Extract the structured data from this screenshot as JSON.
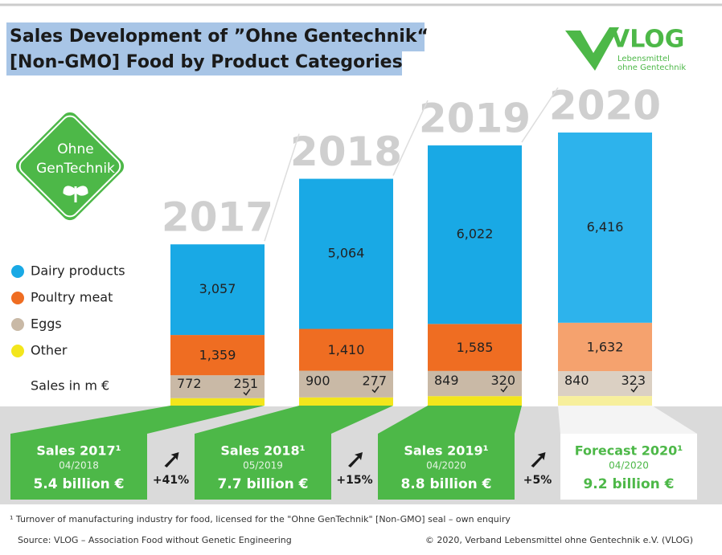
{
  "chart_data": {
    "type": "stacked_bar",
    "title_lines": [
      "Sales Development of ”Ohne Gentechnik“",
      "[Non-GMO] Food by Product Categories"
    ],
    "logo": {
      "name": "VLOG",
      "tagline": [
        "Lebensmittel",
        "ohne Gentechnik"
      ]
    },
    "badge": [
      "Ohne",
      "GenTechnik"
    ],
    "unit_label": "Sales in m €",
    "categories": [
      "2017",
      "2018",
      "2019",
      "2020"
    ],
    "series": [
      {
        "name": "Dairy products",
        "color": "#19a9e5",
        "colors": [
          "#19a9e5",
          "#19a9e5",
          "#19a9e5",
          "#2db3ec"
        ],
        "values": [
          3057,
          5064,
          6022,
          6416
        ],
        "value_labels": [
          "3,057",
          "5,064",
          "6,022",
          "6,416"
        ]
      },
      {
        "name": "Poultry meat",
        "color": "#ef6d22",
        "colors": [
          "#ef6d22",
          "#ef6d22",
          "#ef6d22",
          "#f5a26e"
        ],
        "values": [
          1359,
          1410,
          1585,
          1632
        ],
        "value_labels": [
          "1,359",
          "1,410",
          "1,585",
          "1,632"
        ]
      },
      {
        "name": "Eggs",
        "color": "#c9b9a6",
        "colors": [
          "#c9b9a6",
          "#c9b9a6",
          "#c9b9a6",
          "#dbd0c3"
        ],
        "values": [
          772,
          900,
          849,
          840
        ]
      },
      {
        "name": "Other",
        "color": "#f3e61c",
        "colors": [
          "#f3e61c",
          "#f3e61c",
          "#f3e61c",
          "#f7ef9c"
        ],
        "values": [
          251,
          277,
          320,
          323
        ]
      }
    ],
    "summary": [
      {
        "title": "Sales 2017¹",
        "date": "04/2018",
        "value": "5.4 billion €"
      },
      {
        "title": "Sales 2018¹",
        "date": "05/2019",
        "value": "7.7 billion €"
      },
      {
        "title": "Sales 2019¹",
        "date": "04/2020",
        "value": "8.8 billion €"
      },
      {
        "title": "Forecast 2020¹",
        "date": "04/2020",
        "value": "9.2 billion €"
      }
    ],
    "growth": [
      "+41%",
      "+15%",
      "+5%"
    ],
    "footnote": "¹ Turnover of manufacturing industry for food, licensed for the \"Ohne GenTechnik\" [Non-GMO] seal – own enquiry",
    "source": "Source: VLOG – Association Food without Genetic Engineering",
    "copyright": "© 2020, Verband Lebensmittel ohne Gentechnik e.V. (VLOG)"
  }
}
